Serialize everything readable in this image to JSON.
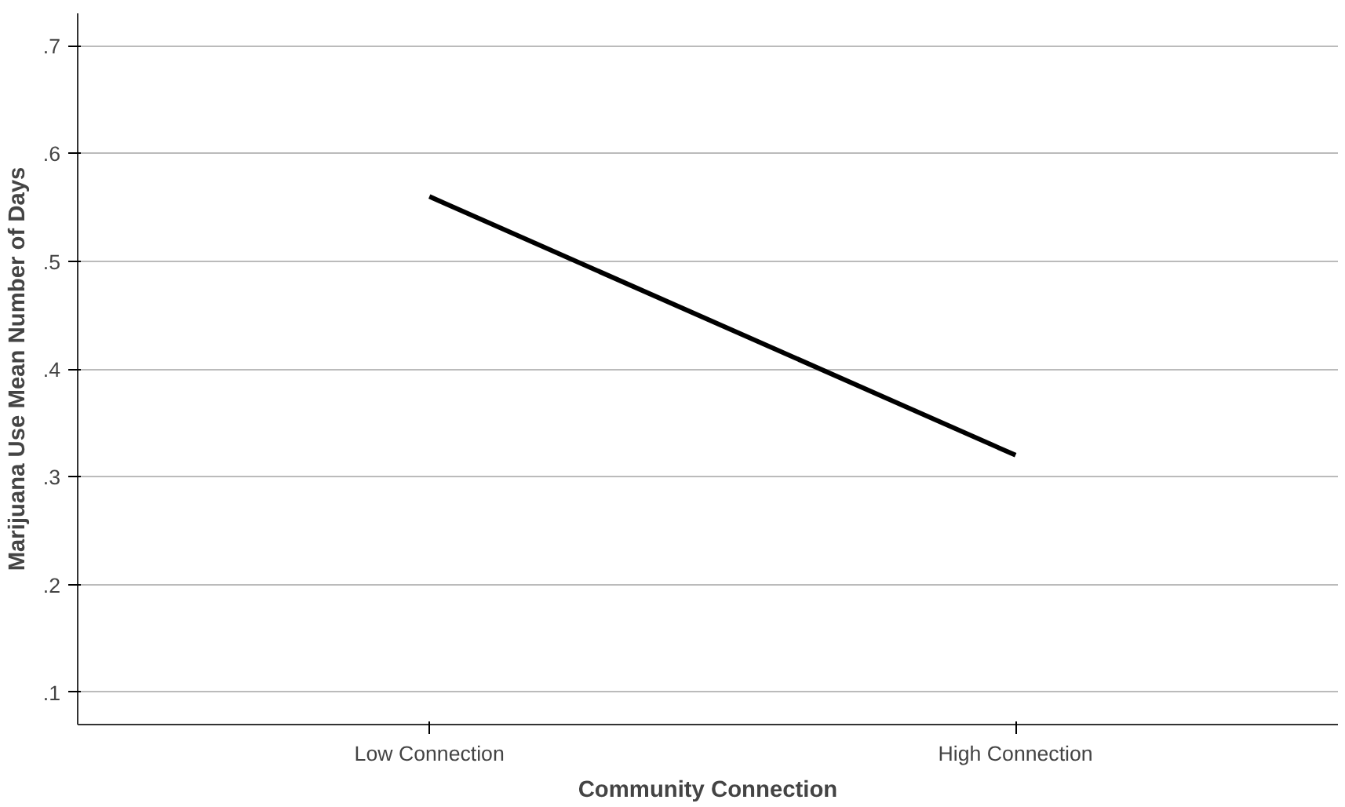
{
  "chart_data": {
    "type": "line",
    "xlabel": "Community Connection",
    "ylabel": "Marijuana Use Mean Number of Days",
    "categories": [
      "Low Connection",
      "High Connection"
    ],
    "series": [
      {
        "color": "#000000",
        "values": [
          0.56,
          0.32
        ]
      }
    ],
    "ylim": [
      0.07,
      0.73
    ],
    "yticks": [
      {
        "value": 0.1,
        "label": ".1"
      },
      {
        "value": 0.2,
        "label": ".2"
      },
      {
        "value": 0.3,
        "label": ".3"
      },
      {
        "value": 0.4,
        "label": ".4"
      },
      {
        "value": 0.5,
        "label": ".5"
      },
      {
        "value": 0.6,
        "label": ".6"
      },
      {
        "value": 0.7,
        "label": ".7"
      }
    ],
    "grid": "y",
    "marker": "none",
    "line_style": "solid"
  }
}
